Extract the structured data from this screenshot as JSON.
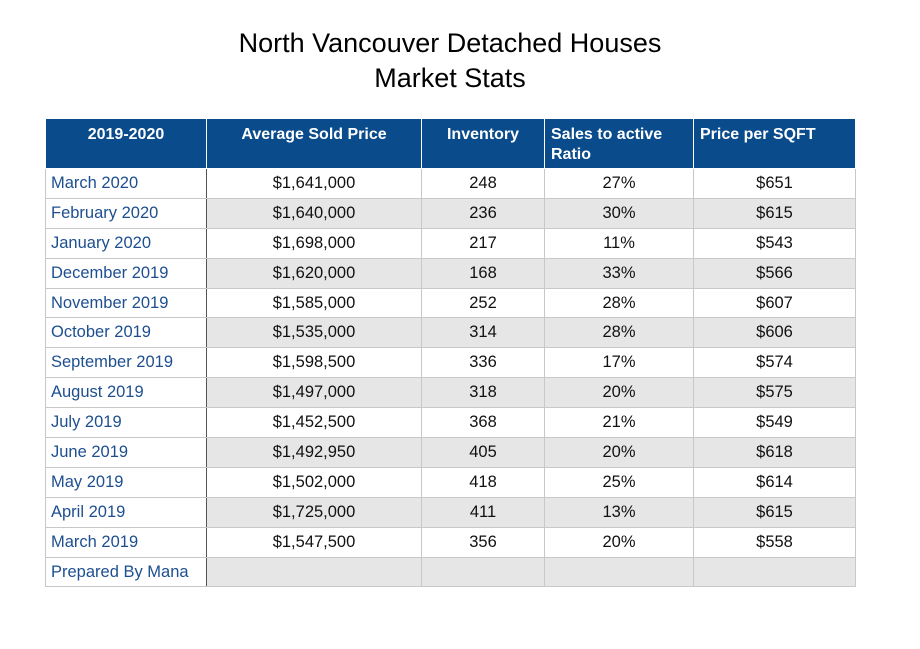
{
  "title_line1": "North Vancouver Detached Houses",
  "title_line2": "Market Stats",
  "chart_data": {
    "type": "table",
    "columns": [
      "2019-2020",
      "Average Sold Price",
      "Inventory",
      "Sales to active Ratio",
      "Price per SQFT"
    ],
    "rows": [
      [
        "March 2020",
        "$1,641,000",
        "248",
        "27%",
        "$651"
      ],
      [
        "February 2020",
        "$1,640,000",
        "236",
        "30%",
        "$615"
      ],
      [
        "January 2020",
        "$1,698,000",
        "217",
        "11%",
        "$543"
      ],
      [
        "December 2019",
        "$1,620,000",
        "168",
        "33%",
        "$566"
      ],
      [
        "November 2019",
        "$1,585,000",
        "252",
        "28%",
        "$607"
      ],
      [
        "October 2019",
        "$1,535,000",
        "314",
        "28%",
        "$606"
      ],
      [
        "September 2019",
        "$1,598,500",
        "336",
        "17%",
        "$574"
      ],
      [
        "August 2019",
        "$1,497,000",
        "318",
        "20%",
        "$575"
      ],
      [
        "July 2019",
        "$1,452,500",
        "368",
        "21%",
        "$549"
      ],
      [
        "June 2019",
        "$1,492,950",
        "405",
        "20%",
        "$618"
      ],
      [
        "May 2019",
        "$1,502,000",
        "418",
        "25%",
        "$614"
      ],
      [
        "April 2019",
        "$1,725,000",
        "411",
        "13%",
        "$615"
      ],
      [
        "March 2019",
        "$1,547,500",
        "356",
        "20%",
        "$558"
      ]
    ],
    "footer": "Prepared By Mana"
  },
  "colors": {
    "header_bg": "#0a4b8c",
    "month_text": "#1d4f90",
    "alt_row_bg": "#e6e6e6"
  }
}
